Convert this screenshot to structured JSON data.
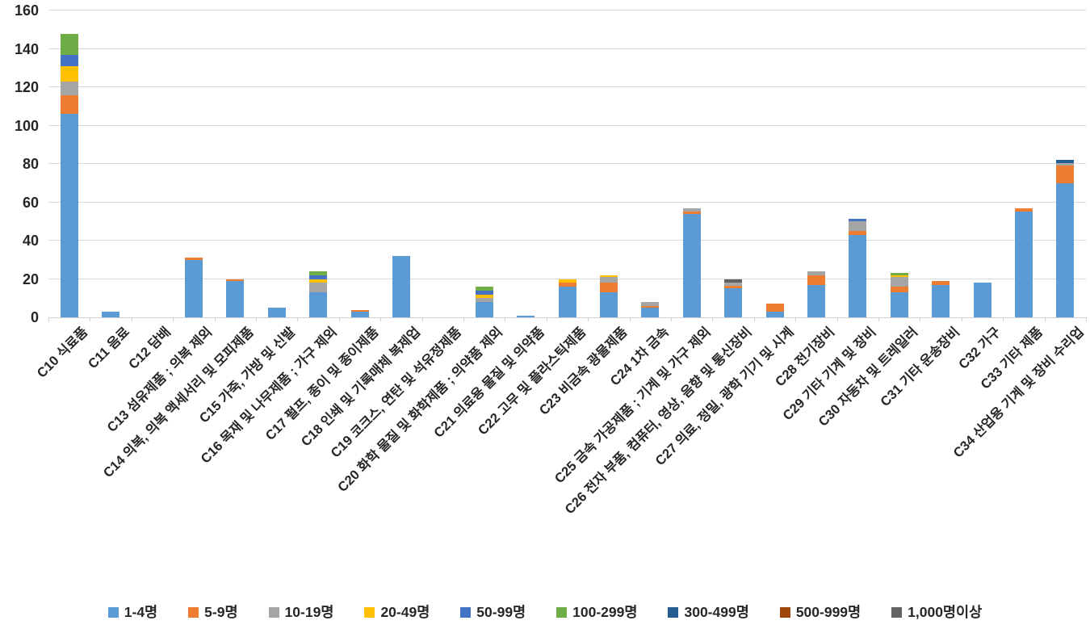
{
  "chart_data": {
    "type": "bar",
    "stacked": true,
    "title": "",
    "xlabel": "",
    "ylabel": "",
    "ylim": [
      0,
      160
    ],
    "y_ticks": [
      0,
      20,
      40,
      60,
      80,
      100,
      120,
      140,
      160
    ],
    "grid": true,
    "legend_position": "bottom",
    "categories": [
      "C10 식료품",
      "C11 음료",
      "C12 담배",
      "C13 섬유제품 ; 의복 제외",
      "C14 의복, 의복 액세서리 및 모피제품",
      "C15 가죽, 가방 및 신발",
      "C16 목재 및 나무제품 ; 가구 제외",
      "C17 펄프, 종이 및 종이제품",
      "C18 인쇄 및 기록매체 복제업",
      "C19 코크스, 연탄 및 석유정제품",
      "C20 화학 물질 및 화학제품 ; 의약품 제외",
      "C21 의료용 물질 및 의약품",
      "C22 고무 및 플라스틱제품",
      "C23 비금속 광물제품",
      "C24 1차 금속",
      "C25 금속 가공제품 ; 기계 및 가구 제외",
      "C26 전자 부품, 컴퓨터, 영상, 음향 및 통신장비",
      "C27 의료, 정밀, 광학 기기 및 시계",
      "C28 전기장비",
      "C29 기타 기계 및 장비",
      "C30 자동차 및 트레일러",
      "C31 기타 운송장비",
      "C32 가구",
      "C33 기타 제품",
      "C34 산업용 기계 및 장비 수리업"
    ],
    "series": [
      {
        "name": "1-4명",
        "color": "#5B9BD5",
        "values": [
          106,
          3,
          0,
          30,
          19,
          5,
          13,
          3,
          32,
          0,
          8,
          1,
          16,
          13,
          5,
          54,
          15,
          3,
          17,
          43,
          13,
          17,
          18,
          55,
          70
        ]
      },
      {
        "name": "5-9명",
        "color": "#ED7D31",
        "values": [
          10,
          0,
          0,
          1,
          1,
          0,
          0,
          1,
          0,
          0,
          0,
          0,
          2,
          5,
          1,
          1,
          1.5,
          4,
          5,
          2,
          3,
          2,
          0,
          2,
          9
        ]
      },
      {
        "name": "10-19명",
        "color": "#A5A5A5",
        "values": [
          7,
          0,
          0,
          0,
          0,
          0,
          5,
          0,
          0,
          0,
          2,
          0,
          0,
          3,
          2,
          2,
          1.5,
          0,
          2,
          5,
          5,
          0,
          0,
          0,
          1.5
        ]
      },
      {
        "name": "20-49명",
        "color": "#FFC000",
        "values": [
          8,
          0,
          0,
          0,
          0,
          0,
          2,
          0,
          0,
          0,
          2,
          0,
          2,
          1,
          0,
          0,
          0,
          0,
          0,
          0,
          1,
          0,
          0,
          0,
          0
        ]
      },
      {
        "name": "50-99명",
        "color": "#4472C4",
        "values": [
          6,
          0,
          0,
          0,
          0,
          0,
          2,
          0,
          0,
          0,
          2,
          0,
          0,
          0,
          0,
          0,
          0,
          0,
          0,
          1.5,
          0,
          0,
          0,
          0,
          0
        ]
      },
      {
        "name": "100-299명",
        "color": "#70AD47",
        "values": [
          11,
          0,
          0,
          0,
          0,
          0,
          2,
          0,
          0,
          0,
          2,
          0,
          0,
          0,
          0,
          0,
          0,
          0,
          0,
          0,
          1,
          0,
          0,
          0,
          0
        ]
      },
      {
        "name": "300-499명",
        "color": "#255E91",
        "values": [
          0,
          0,
          0,
          0,
          0,
          0,
          0,
          0,
          0,
          0,
          0,
          0,
          0,
          0,
          0,
          0,
          0,
          0,
          0,
          0,
          0,
          0,
          0,
          0,
          1.5
        ]
      },
      {
        "name": "500-999명",
        "color": "#9E480E",
        "values": [
          0,
          0,
          0,
          0,
          0,
          0,
          0,
          0,
          0,
          0,
          0,
          0,
          0,
          0,
          0,
          0,
          0,
          0,
          0,
          0,
          0,
          0,
          0,
          0,
          0
        ]
      },
      {
        "name": "1,000명이상",
        "color": "#636363",
        "values": [
          0,
          0,
          0,
          0,
          0,
          0,
          0,
          0,
          0,
          0,
          0,
          0,
          0,
          0,
          0,
          0,
          2,
          0,
          0,
          0,
          0,
          0,
          0,
          0,
          0
        ]
      }
    ]
  }
}
